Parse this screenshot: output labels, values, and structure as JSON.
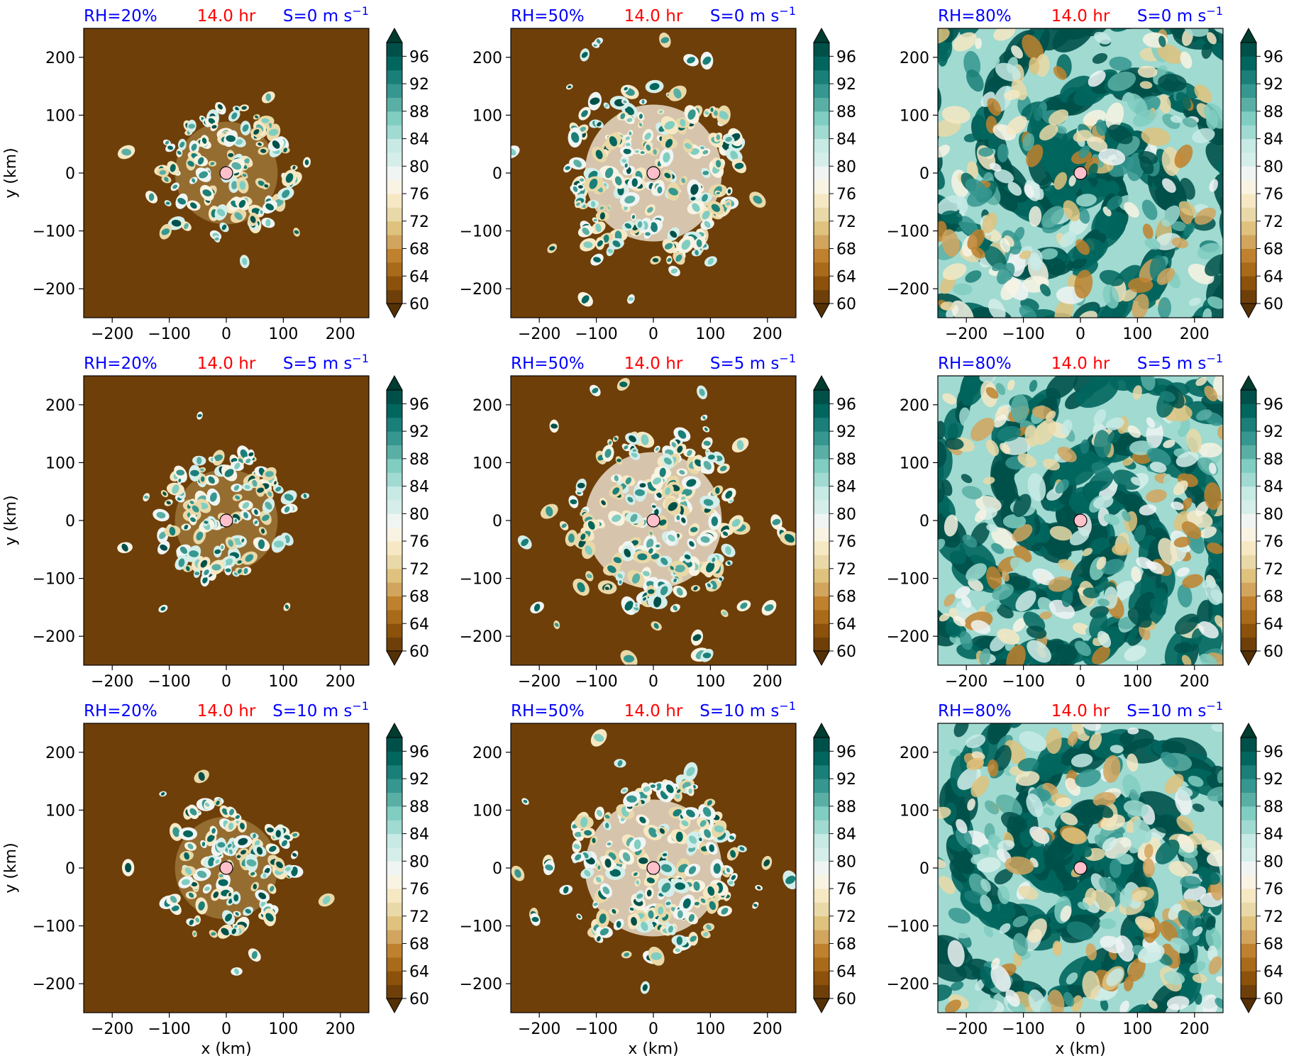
{
  "figure": {
    "time_label": "14.0 hr",
    "colors": {
      "title_blue": "#0000ff",
      "title_red": "#ff0000",
      "center_marker": "#ffc0cb"
    }
  },
  "chart_data": {
    "type": "heatmap",
    "colormap": "BrBG",
    "colorbar": {
      "ticks": [
        60,
        64,
        68,
        72,
        76,
        80,
        84,
        88,
        92,
        96
      ],
      "levels": [
        60,
        62,
        64,
        66,
        68,
        70,
        72,
        74,
        76,
        78,
        80,
        82,
        84,
        86,
        88,
        90,
        92,
        94,
        96,
        98
      ],
      "colors": [
        "#543005",
        "#6f3f09",
        "#8c510a",
        "#a96a1a",
        "#bf812d",
        "#d2a55e",
        "#dfc27d",
        "#ead9a8",
        "#f6e8c3",
        "#f8f3e3",
        "#f0f5f4",
        "#d5eeea",
        "#c7eae5",
        "#a0dad1",
        "#80cdc1",
        "#5aafa5",
        "#35978f",
        "#1a7f78",
        "#01665e",
        "#00504a",
        "#003c30"
      ],
      "extend": "both"
    },
    "x_ticks": [
      -200,
      -100,
      0,
      100,
      200
    ],
    "y_ticks": [
      -200,
      -100,
      0,
      100,
      200
    ],
    "xlim": [
      -250,
      250
    ],
    "ylim": [
      -250,
      250
    ],
    "xlabel": "x (km)",
    "ylabel": "y (km)",
    "center_marker": {
      "x": 0,
      "y": 0
    },
    "rows": [
      {
        "shear_label": "S=0 m s",
        "shear_exp": "−1"
      },
      {
        "shear_label": "S=5 m s",
        "shear_exp": "−1"
      },
      {
        "shear_label": "S=10 m s",
        "shear_exp": "−1"
      }
    ],
    "columns": [
      {
        "rh_label": "RH=20%",
        "background_rh": 61,
        "core_radius_km": 120,
        "blob_count": 110,
        "blob_radius": [
          4,
          11
        ]
      },
      {
        "rh_label": "RH=50%",
        "background_rh": 61,
        "core_radius_km": 160,
        "blob_count": 190,
        "blob_radius": [
          4,
          12
        ]
      },
      {
        "rh_label": "RH=80%",
        "background_rh": 85,
        "core_radius_km": 260,
        "blob_count": 260,
        "blob_radius": [
          6,
          16
        ]
      }
    ]
  }
}
